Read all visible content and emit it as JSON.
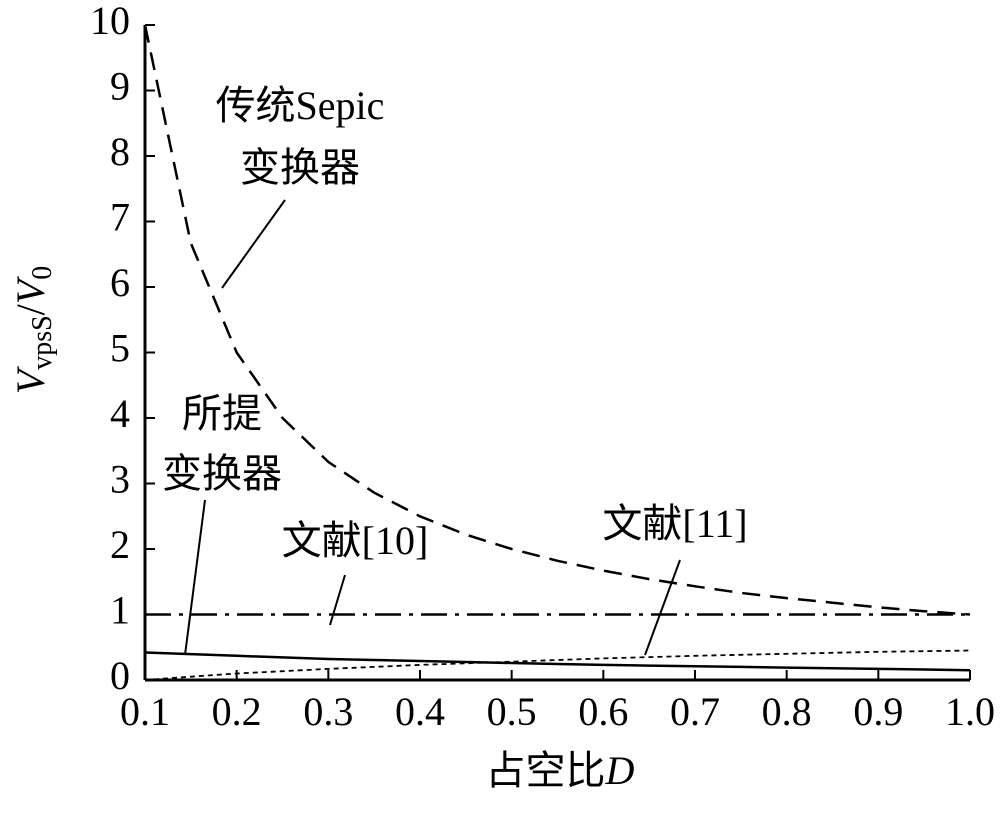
{
  "chart_data": {
    "type": "line",
    "xlabel_parts": [
      "占空比",
      "D"
    ],
    "ylabel_parts": [
      "V",
      "vpsS",
      "/",
      "V",
      "0"
    ],
    "x": [
      0.1,
      0.15,
      0.2,
      0.25,
      0.3,
      0.35,
      0.4,
      0.45,
      0.5,
      0.55,
      0.6,
      0.65,
      0.7,
      0.75,
      0.8,
      0.85,
      0.9,
      0.95,
      1.0
    ],
    "series": [
      {
        "label_lines": [
          "传统Sepic",
          "变换器"
        ],
        "color": "#000000",
        "dash": "18,10",
        "values": [
          10,
          6.67,
          5,
          4,
          3.33,
          2.86,
          2.5,
          2.22,
          2,
          1.82,
          1.67,
          1.54,
          1.43,
          1.33,
          1.25,
          1.18,
          1.11,
          1.05,
          1
        ]
      },
      {
        "label_lines": [
          "文献[10]"
        ],
        "color": "#000000",
        "dash": "26,8,4,8",
        "values": [
          1,
          1,
          1,
          1,
          1,
          1,
          1,
          1,
          1,
          1,
          1,
          1,
          1,
          1,
          1,
          1,
          1,
          1,
          1
        ]
      },
      {
        "label_lines": [
          "所提",
          "变换器"
        ],
        "color": "#000000",
        "dash": "none",
        "values": [
          0.42,
          0.395,
          0.37,
          0.345,
          0.32,
          0.305,
          0.29,
          0.275,
          0.26,
          0.245,
          0.23,
          0.22,
          0.21,
          0.2,
          0.19,
          0.18,
          0.17,
          0.16,
          0.15
        ]
      },
      {
        "label_lines": [
          "文献[11]"
        ],
        "color": "#000000",
        "dash": "5,4",
        "values": [
          0,
          0.05,
          0.1,
          0.135,
          0.17,
          0.2,
          0.23,
          0.255,
          0.28,
          0.305,
          0.33,
          0.35,
          0.37,
          0.385,
          0.4,
          0.415,
          0.43,
          0.44,
          0.45
        ]
      }
    ],
    "xlim": [
      0.1,
      1.0
    ],
    "xticks": [
      0.1,
      0.2,
      0.3,
      0.4,
      0.5,
      0.6,
      0.7,
      0.8,
      0.9,
      {
        "value": 1.0,
        "label": "1.0"
      }
    ],
    "ylim": [
      0,
      10
    ],
    "yticks": [
      0,
      1,
      2,
      3,
      4,
      5,
      6,
      7,
      8,
      9,
      10
    ]
  }
}
